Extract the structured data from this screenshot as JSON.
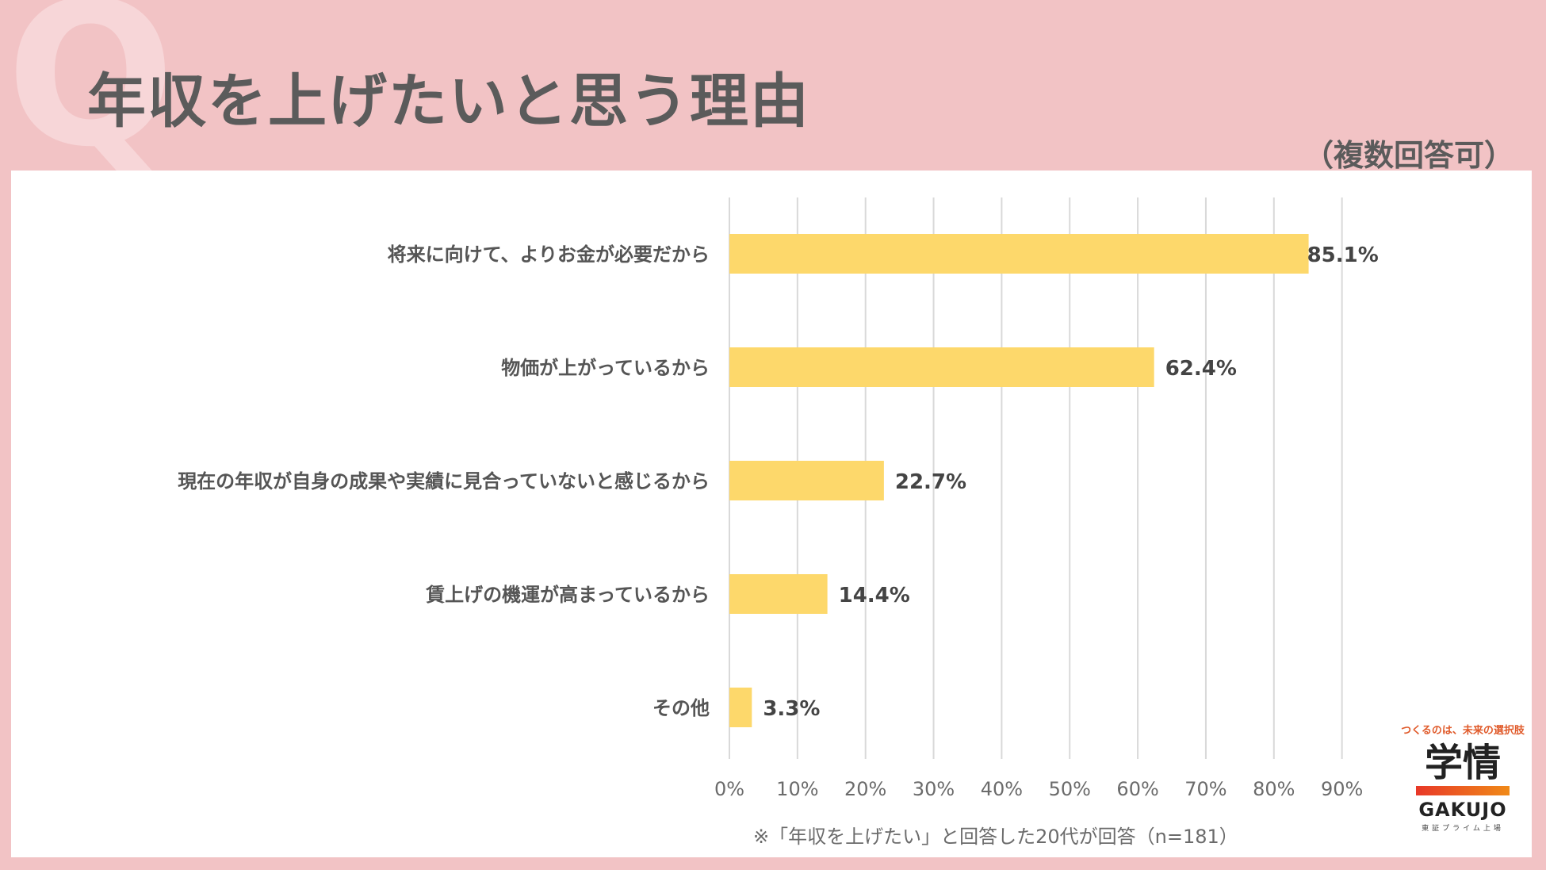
{
  "header": {
    "q_mark": "Q",
    "title": "年収を上げたいと思う理由",
    "subtitle": "（複数回答可）"
  },
  "footnote": "※「年収を上げたい」と回答した20代が回答（n=181）",
  "logo": {
    "tagline": "つくるのは、未来の選択肢",
    "kanji": "学情",
    "english": "GAKUJO",
    "subline": "東証プライム上場"
  },
  "colors": {
    "background": "#f2c3c5",
    "bar": "#fdd86b",
    "grid": "#d9d9d9"
  },
  "chart_data": {
    "type": "bar",
    "orientation": "horizontal",
    "categories": [
      "将来に向けて、よりお金が必要だから",
      "物価が上がっているから",
      "現在の年収が自身の成果や実績に見合っていないと感じるから",
      "賃上げの機運が高まっているから",
      "その他"
    ],
    "values": [
      85.1,
      62.4,
      22.7,
      14.4,
      3.3
    ],
    "value_labels": [
      "85.1%",
      "62.4%",
      "22.7%",
      "14.4%",
      "3.3%"
    ],
    "xlim": [
      0,
      90
    ],
    "ticks": [
      0,
      10,
      20,
      30,
      40,
      50,
      60,
      70,
      80,
      90
    ],
    "tick_labels": [
      "0%",
      "10%",
      "20%",
      "30%",
      "40%",
      "50%",
      "60%",
      "70%",
      "80%",
      "90%"
    ],
    "grid": true
  }
}
